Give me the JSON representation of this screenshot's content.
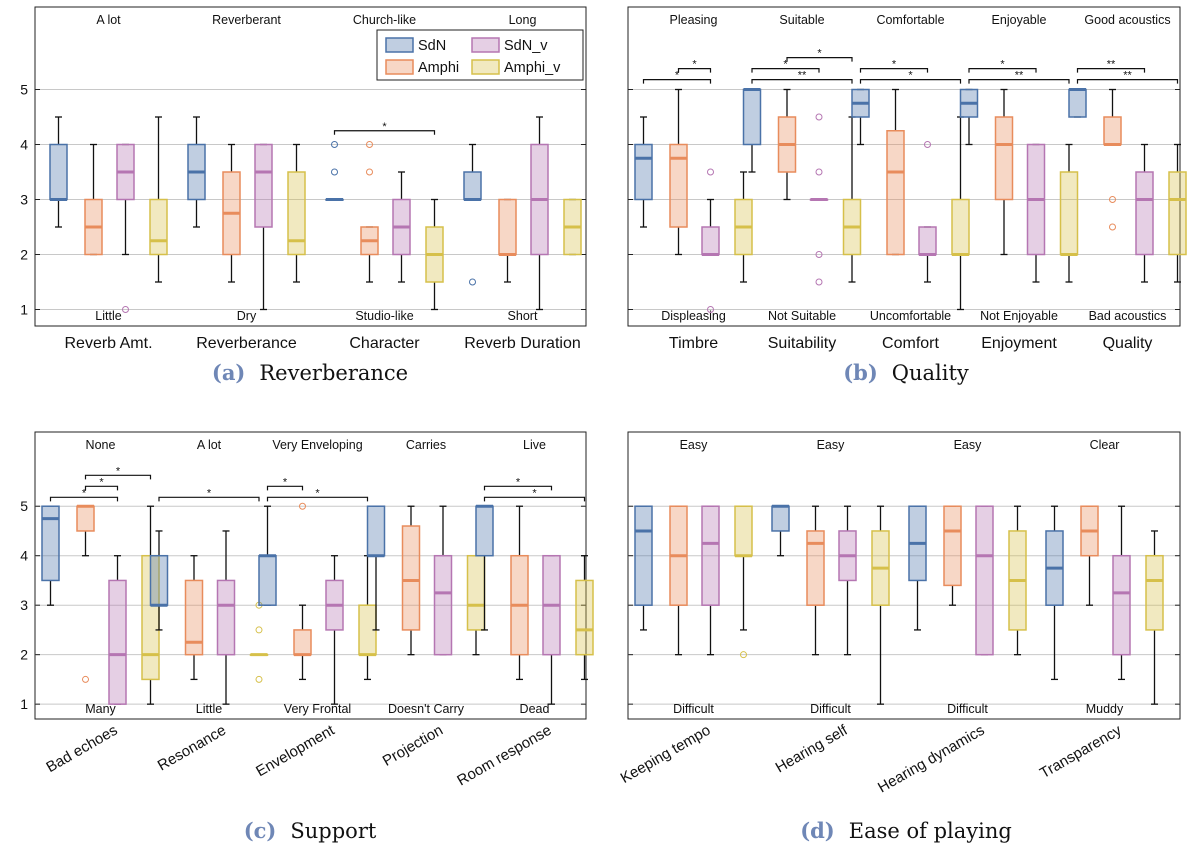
{
  "colors": {
    "SdN": "#4a72a8",
    "Amphi": "#e88c5c",
    "SdN_v": "#b576b2",
    "Amphi_v": "#d6c04a"
  },
  "legend": [
    "SdN",
    "Amphi",
    "SdN_v",
    "Amphi_v"
  ],
  "chart_data": [
    {
      "id": "a",
      "type": "boxplot",
      "caption_label": "(a)",
      "caption": "Reverberance",
      "ylim": [
        0.7,
        6.5
      ],
      "yticks": [
        1,
        2,
        3,
        4,
        5
      ],
      "grid": true,
      "legend_position": "top-right",
      "series": [
        "SdN",
        "Amphi",
        "SdN_v",
        "Amphi_v"
      ],
      "categories": [
        "Reverb Amt.",
        "Reverberance",
        "Character",
        "Reverb Duration"
      ],
      "top_anchors": [
        "A lot",
        "Reverberant",
        "Church-like",
        "Long"
      ],
      "bottom_anchors": [
        "Little",
        "Dry",
        "Studio-like",
        "Short"
      ],
      "boxes": [
        [
          {
            "lo": 2.5,
            "q1": 3,
            "med": 3,
            "q3": 4,
            "hi": 4.5,
            "out": []
          },
          {
            "lo": 2,
            "q1": 2,
            "med": 2.5,
            "q3": 3,
            "hi": 4,
            "out": []
          },
          {
            "lo": 2,
            "q1": 3,
            "med": 3.5,
            "q3": 4,
            "hi": 4,
            "out": [
              1
            ]
          },
          {
            "lo": 1.5,
            "q1": 2,
            "med": 2.25,
            "q3": 3,
            "hi": 4.5,
            "out": []
          }
        ],
        [
          {
            "lo": 2.5,
            "q1": 3,
            "med": 3.5,
            "q3": 4,
            "hi": 4.5,
            "out": []
          },
          {
            "lo": 1.5,
            "q1": 2,
            "med": 2.75,
            "q3": 3.5,
            "hi": 4,
            "out": []
          },
          {
            "lo": 1,
            "q1": 2.5,
            "med": 3.5,
            "q3": 4,
            "hi": 4,
            "out": []
          },
          {
            "lo": 1.5,
            "q1": 2,
            "med": 2.25,
            "q3": 3.5,
            "hi": 4,
            "out": []
          }
        ],
        [
          {
            "lo": 3,
            "q1": 3,
            "med": 3,
            "q3": 3,
            "hi": 3,
            "out": [
              3.5,
              4
            ]
          },
          {
            "lo": 1.5,
            "q1": 2,
            "med": 2.25,
            "q3": 2.5,
            "hi": 2.5,
            "out": [
              3.5,
              4
            ]
          },
          {
            "lo": 1.5,
            "q1": 2,
            "med": 2.5,
            "q3": 3,
            "hi": 3.5,
            "out": []
          },
          {
            "lo": 1,
            "q1": 1.5,
            "med": 2,
            "q3": 2.5,
            "hi": 3,
            "out": []
          }
        ],
        [
          {
            "lo": 3,
            "q1": 3,
            "med": 3,
            "q3": 3.5,
            "hi": 4,
            "out": [
              1.5
            ]
          },
          {
            "lo": 1.5,
            "q1": 2,
            "med": 2,
            "q3": 3,
            "hi": 3,
            "out": []
          },
          {
            "lo": 1,
            "q1": 2,
            "med": 3,
            "q3": 4,
            "hi": 4.5,
            "out": []
          },
          {
            "lo": 2,
            "q1": 2,
            "med": 2.5,
            "q3": 3,
            "hi": 3,
            "out": []
          }
        ]
      ],
      "significance": [
        {
          "cat": 2,
          "from": 0,
          "to": 3,
          "label": "*"
        }
      ]
    },
    {
      "id": "b",
      "type": "boxplot",
      "caption_label": "(b)",
      "caption": "Quality",
      "ylim": [
        0.7,
        6.5
      ],
      "yticks": [
        1,
        2,
        3,
        4,
        5
      ],
      "grid": true,
      "series": [
        "SdN",
        "Amphi",
        "SdN_v",
        "Amphi_v"
      ],
      "categories": [
        "Timbre",
        "Suitability",
        "Comfort",
        "Enjoyment",
        "Quality"
      ],
      "top_anchors": [
        "Pleasing",
        "Suitable",
        "Comfortable",
        "Enjoyable",
        "Good acoustics"
      ],
      "bottom_anchors": [
        "Displeasing",
        "Not Suitable",
        "Uncomfortable",
        "Not Enjoyable",
        "Bad acoustics"
      ],
      "boxes": [
        [
          {
            "lo": 2.5,
            "q1": 3,
            "med": 3.75,
            "q3": 4,
            "hi": 4.5,
            "out": []
          },
          {
            "lo": 2,
            "q1": 2.5,
            "med": 3.75,
            "q3": 4,
            "hi": 5,
            "out": []
          },
          {
            "lo": 2,
            "q1": 2,
            "med": 2,
            "q3": 2.5,
            "hi": 3,
            "out": [
              3.5,
              1
            ]
          },
          {
            "lo": 1.5,
            "q1": 2,
            "med": 2.5,
            "q3": 3,
            "hi": 3.5,
            "out": []
          }
        ],
        [
          {
            "lo": 3.5,
            "q1": 4,
            "med": 5,
            "q3": 5,
            "hi": 5,
            "out": []
          },
          {
            "lo": 3,
            "q1": 3.5,
            "med": 4,
            "q3": 4.5,
            "hi": 5,
            "out": []
          },
          {
            "lo": 3,
            "q1": 3,
            "med": 3,
            "q3": 3,
            "hi": 3,
            "out": [
              4.5,
              3.5,
              2,
              1.5
            ]
          },
          {
            "lo": 1.5,
            "q1": 2,
            "med": 2.5,
            "q3": 3,
            "hi": 4.5,
            "out": []
          }
        ],
        [
          {
            "lo": 4,
            "q1": 4.5,
            "med": 4.75,
            "q3": 5,
            "hi": 5,
            "out": []
          },
          {
            "lo": 2,
            "q1": 2,
            "med": 3.5,
            "q3": 4.25,
            "hi": 5,
            "out": []
          },
          {
            "lo": 1.5,
            "q1": 2,
            "med": 2,
            "q3": 2.5,
            "hi": 2.5,
            "out": [
              4
            ]
          },
          {
            "lo": 1,
            "q1": 2,
            "med": 2,
            "q3": 3,
            "hi": 4.5,
            "out": []
          }
        ],
        [
          {
            "lo": 4,
            "q1": 4.5,
            "med": 4.75,
            "q3": 5,
            "hi": 5,
            "out": []
          },
          {
            "lo": 2,
            "q1": 3,
            "med": 4,
            "q3": 4.5,
            "hi": 5,
            "out": []
          },
          {
            "lo": 1.5,
            "q1": 2,
            "med": 3,
            "q3": 4,
            "hi": 4,
            "out": []
          },
          {
            "lo": 1.5,
            "q1": 2,
            "med": 2,
            "q3": 3.5,
            "hi": 4,
            "out": []
          }
        ],
        [
          {
            "lo": 4.5,
            "q1": 4.5,
            "med": 5,
            "q3": 5,
            "hi": 5,
            "out": []
          },
          {
            "lo": 4,
            "q1": 4,
            "med": 4,
            "q3": 4.5,
            "hi": 5,
            "out": [
              3,
              2.5
            ]
          },
          {
            "lo": 1.5,
            "q1": 2,
            "med": 3,
            "q3": 3.5,
            "hi": 4,
            "out": []
          },
          {
            "lo": 1.5,
            "q1": 2,
            "med": 3,
            "q3": 3.5,
            "hi": 4,
            "out": []
          }
        ]
      ],
      "significance": [
        {
          "cat": 0,
          "from": 1,
          "to": 2,
          "label": "*",
          "level": 2
        },
        {
          "cat": 0,
          "from": 0,
          "to": 2,
          "label": "*",
          "level": 1
        },
        {
          "cat": 1,
          "from": 1,
          "to": 3,
          "label": "*",
          "level": 3
        },
        {
          "cat": 1,
          "from": 0,
          "to": 2,
          "label": "*",
          "level": 2
        },
        {
          "cat": 1,
          "from": 0,
          "to": 3,
          "label": "**",
          "level": 1
        },
        {
          "cat": 2,
          "from": 0,
          "to": 2,
          "label": "*",
          "level": 2
        },
        {
          "cat": 2,
          "from": 0,
          "to": 3,
          "label": "*",
          "level": 1
        },
        {
          "cat": 3,
          "from": 0,
          "to": 2,
          "label": "*",
          "level": 2
        },
        {
          "cat": 3,
          "from": 0,
          "to": 3,
          "label": "**",
          "level": 1
        },
        {
          "cat": 4,
          "from": 0,
          "to": 2,
          "label": "**",
          "level": 2
        },
        {
          "cat": 4,
          "from": 0,
          "to": 3,
          "label": "**",
          "level": 1
        }
      ]
    },
    {
      "id": "c",
      "type": "boxplot",
      "caption_label": "(c)",
      "caption": "Support",
      "ylim": [
        0.7,
        6.5
      ],
      "yticks": [
        1,
        2,
        3,
        4,
        5
      ],
      "grid": true,
      "series": [
        "SdN",
        "Amphi",
        "SdN_v",
        "Amphi_v"
      ],
      "categories": [
        "Bad echoes",
        "Resonance",
        "Envelopment",
        "Projection",
        "Room response"
      ],
      "top_anchors": [
        "None",
        "A lot",
        "Very Enveloping",
        "Carries",
        "Live"
      ],
      "bottom_anchors": [
        "Many",
        "Little",
        "Very Frontal",
        "Doesn't Carry",
        "Dead"
      ],
      "boxes": [
        [
          {
            "lo": 3,
            "q1": 3.5,
            "med": 4.75,
            "q3": 5,
            "hi": 5,
            "out": []
          },
          {
            "lo": 4,
            "q1": 4.5,
            "med": 5,
            "q3": 5,
            "hi": 5,
            "out": [
              1.5
            ]
          },
          {
            "lo": 1,
            "q1": 1,
            "med": 2,
            "q3": 3.5,
            "hi": 4,
            "out": []
          },
          {
            "lo": 1,
            "q1": 1.5,
            "med": 2,
            "q3": 4,
            "hi": 5,
            "out": []
          }
        ],
        [
          {
            "lo": 2.5,
            "q1": 3,
            "med": 3,
            "q3": 4,
            "hi": 4.5,
            "out": []
          },
          {
            "lo": 1.5,
            "q1": 2,
            "med": 2.25,
            "q3": 3.5,
            "hi": 4,
            "out": []
          },
          {
            "lo": 1,
            "q1": 2,
            "med": 3,
            "q3": 3.5,
            "hi": 4.5,
            "out": []
          },
          {
            "lo": 2,
            "q1": 2,
            "med": 2,
            "q3": 2,
            "hi": 2,
            "out": [
              3,
              2.5,
              1.5
            ]
          }
        ],
        [
          {
            "lo": 3,
            "q1": 3,
            "med": 4,
            "q3": 4,
            "hi": 5,
            "out": []
          },
          {
            "lo": 1.5,
            "q1": 2,
            "med": 2,
            "q3": 2.5,
            "hi": 3,
            "out": [
              5
            ]
          },
          {
            "lo": 1,
            "q1": 2.5,
            "med": 3,
            "q3": 3.5,
            "hi": 4,
            "out": []
          },
          {
            "lo": 1.5,
            "q1": 2,
            "med": 2,
            "q3": 3,
            "hi": 4,
            "out": []
          }
        ],
        [
          {
            "lo": 2.5,
            "q1": 4,
            "med": 4,
            "q3": 5,
            "hi": 5,
            "out": []
          },
          {
            "lo": 2,
            "q1": 2.5,
            "med": 3.5,
            "q3": 4.6,
            "hi": 5,
            "out": []
          },
          {
            "lo": 2,
            "q1": 2,
            "med": 3.25,
            "q3": 4,
            "hi": 5,
            "out": []
          },
          {
            "lo": 2,
            "q1": 2.5,
            "med": 3,
            "q3": 4,
            "hi": 4,
            "out": []
          }
        ],
        [
          {
            "lo": 2.5,
            "q1": 4,
            "med": 5,
            "q3": 5,
            "hi": 5,
            "out": []
          },
          {
            "lo": 1.5,
            "q1": 2,
            "med": 3,
            "q3": 4,
            "hi": 5,
            "out": []
          },
          {
            "lo": 1,
            "q1": 2,
            "med": 3,
            "q3": 4,
            "hi": 4,
            "out": []
          },
          {
            "lo": 1.5,
            "q1": 2,
            "med": 2.5,
            "q3": 3.5,
            "hi": 4,
            "out": []
          }
        ]
      ],
      "significance": [
        {
          "cat": 0,
          "from": 1,
          "to": 3,
          "label": "*",
          "level": 3
        },
        {
          "cat": 0,
          "from": 1,
          "to": 2,
          "label": "*",
          "level": 2
        },
        {
          "cat": 0,
          "from": 0,
          "to": 2,
          "label": "*",
          "level": 1
        },
        {
          "cat": 1,
          "from": 0,
          "to": 3,
          "label": "*",
          "level": 1
        },
        {
          "cat": 2,
          "from": 0,
          "to": 1,
          "label": "*",
          "level": 2
        },
        {
          "cat": 2,
          "from": 0,
          "to": 3,
          "label": "*",
          "level": 1
        },
        {
          "cat": 4,
          "from": 0,
          "to": 2,
          "label": "*",
          "level": 2
        },
        {
          "cat": 4,
          "from": 0,
          "to": 3,
          "label": "*",
          "level": 1
        }
      ]
    },
    {
      "id": "d",
      "type": "boxplot",
      "caption_label": "(d)",
      "caption": "Ease of playing",
      "ylim": [
        0.7,
        6.5
      ],
      "yticks": [
        1,
        2,
        3,
        4,
        5
      ],
      "grid": true,
      "series": [
        "SdN",
        "Amphi",
        "SdN_v",
        "Amphi_v"
      ],
      "categories": [
        "Keeping tempo",
        "Hearing self",
        "Hearing dynamics",
        "Transparency"
      ],
      "top_anchors": [
        "Easy",
        "Easy",
        "Easy",
        "Clear"
      ],
      "bottom_anchors": [
        "Difficult",
        "Difficult",
        "Difficult",
        "Muddy"
      ],
      "boxes": [
        [
          {
            "lo": 2.5,
            "q1": 3,
            "med": 4.5,
            "q3": 5,
            "hi": 5,
            "out": []
          },
          {
            "lo": 2,
            "q1": 3,
            "med": 4,
            "q3": 5,
            "hi": 5,
            "out": []
          },
          {
            "lo": 2,
            "q1": 3,
            "med": 4.25,
            "q3": 5,
            "hi": 5,
            "out": []
          },
          {
            "lo": 2.5,
            "q1": 4,
            "med": 4,
            "q3": 5,
            "hi": 5,
            "out": [
              2
            ]
          }
        ],
        [
          {
            "lo": 4,
            "q1": 4.5,
            "med": 5,
            "q3": 5,
            "hi": 5,
            "out": []
          },
          {
            "lo": 2,
            "q1": 3,
            "med": 4.25,
            "q3": 4.5,
            "hi": 5,
            "out": []
          },
          {
            "lo": 2,
            "q1": 3.5,
            "med": 4,
            "q3": 4.5,
            "hi": 5,
            "out": []
          },
          {
            "lo": 1,
            "q1": 3,
            "med": 3.75,
            "q3": 4.5,
            "hi": 5,
            "out": []
          }
        ],
        [
          {
            "lo": 2.5,
            "q1": 3.5,
            "med": 4.25,
            "q3": 5,
            "hi": 5,
            "out": []
          },
          {
            "lo": 3,
            "q1": 3.4,
            "med": 4.5,
            "q3": 5,
            "hi": 5,
            "out": []
          },
          {
            "lo": 2,
            "q1": 2,
            "med": 4,
            "q3": 5,
            "hi": 5,
            "out": []
          },
          {
            "lo": 2,
            "q1": 2.5,
            "med": 3.5,
            "q3": 4.5,
            "hi": 5,
            "out": []
          }
        ],
        [
          {
            "lo": 1.5,
            "q1": 3,
            "med": 3.75,
            "q3": 4.5,
            "hi": 5,
            "out": []
          },
          {
            "lo": 3,
            "q1": 4,
            "med": 4.5,
            "q3": 5,
            "hi": 5,
            "out": []
          },
          {
            "lo": 1.5,
            "q1": 2,
            "med": 3.25,
            "q3": 4,
            "hi": 5,
            "out": []
          },
          {
            "lo": 1,
            "q1": 2.5,
            "med": 3.5,
            "q3": 4,
            "hi": 4.5,
            "out": []
          }
        ]
      ],
      "significance": []
    }
  ]
}
